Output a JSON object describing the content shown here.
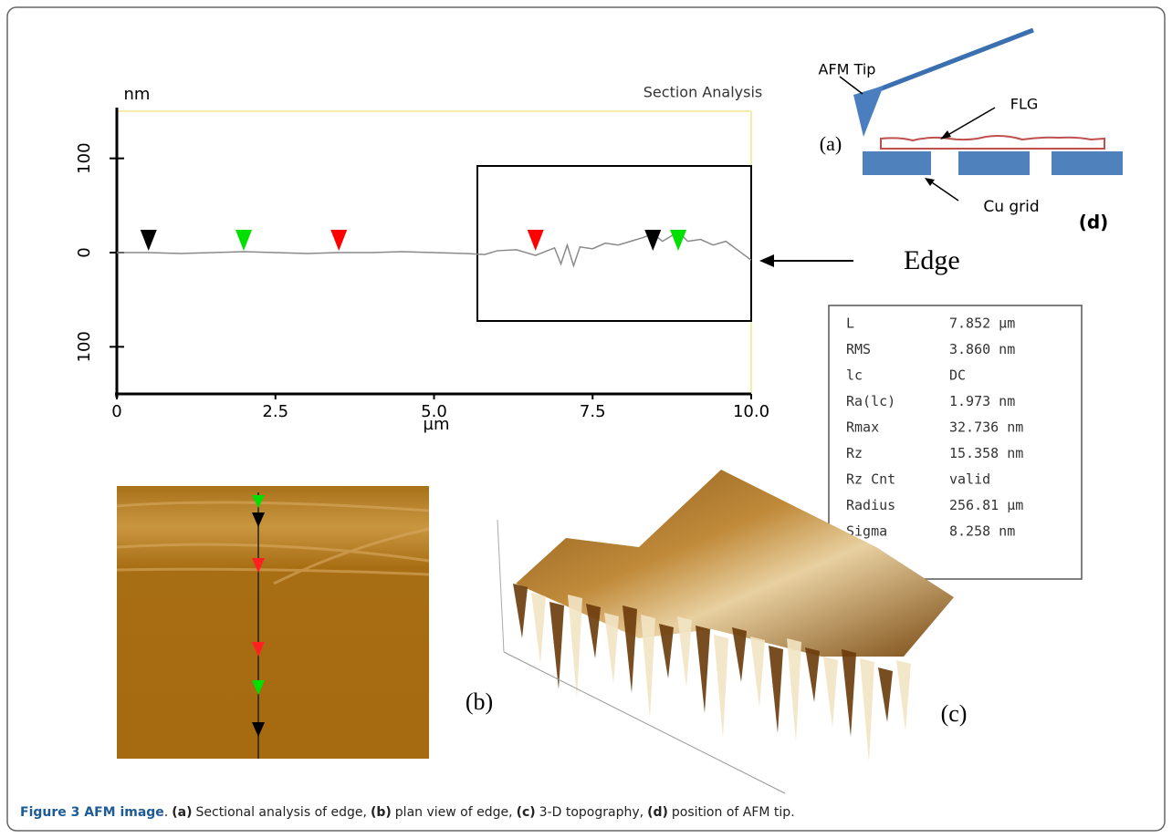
{
  "chart_data": {
    "type": "line",
    "title": "Section Analysis",
    "y_label": "nm",
    "x_label": "µm",
    "x": [
      0,
      0.5,
      1,
      1.5,
      2,
      2.5,
      3,
      3.5,
      4,
      4.5,
      5,
      5.5,
      5.8,
      6,
      6.3,
      6.6,
      6.9,
      7.0,
      7.1,
      7.2,
      7.3,
      7.5,
      7.7,
      7.9,
      8.1,
      8.3,
      8.45,
      8.6,
      8.85,
      9.0,
      9.2,
      9.4,
      9.6,
      9.8,
      10
    ],
    "series": [
      {
        "color": "#8a8a8a",
        "values": [
          0,
          0,
          -1,
          0,
          1,
          0,
          -1,
          0,
          0,
          1,
          0,
          -1,
          -2,
          2,
          3,
          -3,
          5,
          -12,
          8,
          -14,
          6,
          4,
          10,
          8,
          12,
          16,
          20,
          12,
          22,
          12,
          14,
          8,
          12,
          2,
          -8
        ]
      }
    ],
    "cursors": [
      {
        "x": 0.5,
        "color": "#000000"
      },
      {
        "x": 2.0,
        "color": "#00e000"
      },
      {
        "x": 3.5,
        "color": "#ff0000"
      },
      {
        "x": 6.6,
        "color": "#ff0000"
      },
      {
        "x": 8.45,
        "color": "#000000"
      },
      {
        "x": 8.85,
        "color": "#00e000"
      }
    ],
    "xlim": [
      0,
      10
    ],
    "xticks": [
      0,
      2.5,
      {
        "value": 5,
        "label": "5.0"
      },
      7.5,
      {
        "value": 10,
        "label": "10.0"
      }
    ],
    "ylim": [
      -150,
      150
    ],
    "yticks": [
      {
        "value": -100,
        "label": "100"
      },
      0,
      100
    ]
  },
  "edge_label": "Edge",
  "stats": [
    [
      "L",
      "7.852 µm"
    ],
    [
      "RMS",
      "3.860 nm"
    ],
    [
      "lc",
      "DC"
    ],
    [
      "Ra(lc)",
      "1.973 nm"
    ],
    [
      "Rmax",
      "32.736 nm"
    ],
    [
      "Rz",
      "15.358 nm"
    ],
    [
      "Rz Cnt",
      "valid"
    ],
    [
      "Radius",
      "256.81 µm"
    ],
    [
      "Sigma",
      "8.258 nm"
    ]
  ],
  "diagram": {
    "panel": "(a)",
    "tip": "AFM Tip",
    "flg": "FLG",
    "grid": "Cu grid",
    "label": "(d)"
  },
  "panels": {
    "b": "(b)",
    "c": "(c)"
  },
  "caption": {
    "label": "Figure 3 AFM image",
    "parts": [
      {
        "text": "."
      },
      {
        "tag": "(a)",
        "text": "Sectional analysis of edge,"
      },
      {
        "tag": "(b)",
        "text": "plan view of edge,"
      },
      {
        "tag": "(c)",
        "text": "3-D topography,"
      },
      {
        "tag": "(d)",
        "text": "position of AFM tip."
      }
    ]
  }
}
